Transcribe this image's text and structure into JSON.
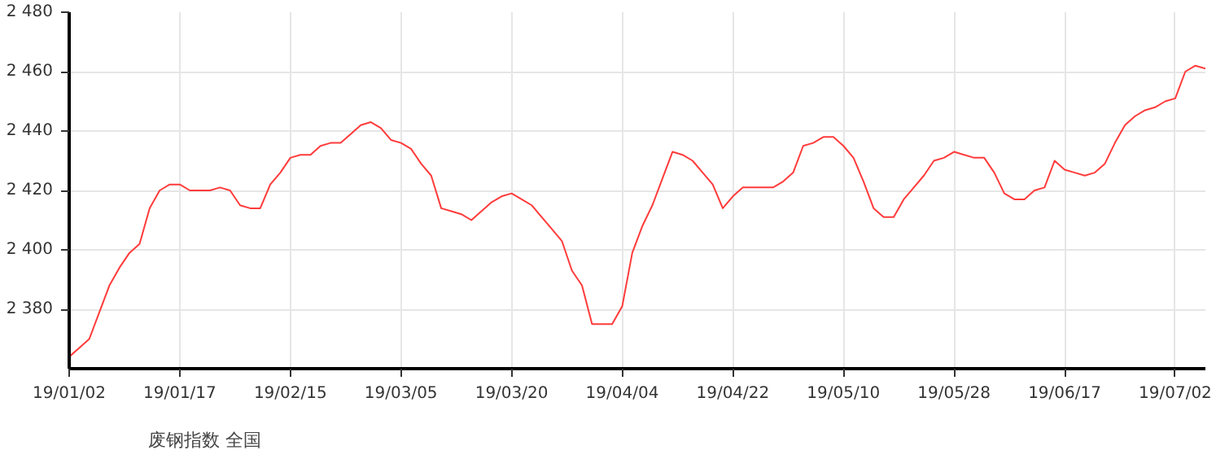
{
  "chart_data": {
    "type": "line",
    "categories": [
      "19/01/02",
      null,
      null,
      null,
      null,
      null,
      null,
      null,
      null,
      null,
      null,
      "19/01/17",
      null,
      null,
      null,
      null,
      null,
      null,
      null,
      null,
      null,
      null,
      "19/02/15",
      null,
      null,
      null,
      null,
      null,
      null,
      null,
      null,
      null,
      null,
      "19/03/05",
      null,
      null,
      null,
      null,
      null,
      null,
      null,
      null,
      null,
      null,
      "19/03/20",
      null,
      null,
      null,
      null,
      null,
      null,
      null,
      null,
      null,
      null,
      "19/04/04",
      null,
      null,
      null,
      null,
      null,
      null,
      null,
      null,
      null,
      null,
      "19/04/22",
      null,
      null,
      null,
      null,
      null,
      null,
      null,
      null,
      null,
      null,
      "19/05/10",
      null,
      null,
      null,
      null,
      null,
      null,
      null,
      null,
      null,
      null,
      "19/05/28",
      null,
      null,
      null,
      null,
      null,
      null,
      null,
      null,
      null,
      null,
      "19/06/17",
      null,
      null,
      null,
      null,
      null,
      null,
      null,
      null,
      null,
      null,
      "19/07/02",
      null,
      null,
      null
    ],
    "series": [
      {
        "name": "废钢指数 全国",
        "color": "#ff3b3b",
        "values": [
          2364,
          2367,
          2370,
          2379,
          2388,
          2394,
          2399,
          2402,
          2414,
          2420,
          2422,
          2422,
          2420,
          2420,
          2420,
          2421,
          2420,
          2415,
          2414,
          2414,
          2422,
          2426,
          2431,
          2432,
          2432,
          2435,
          2436,
          2436,
          2439,
          2442,
          2443,
          2441,
          2437,
          2436,
          2434,
          2429,
          2425,
          2414,
          2413,
          2412,
          2410,
          2413,
          2416,
          2418,
          2419,
          2417,
          2415,
          2411,
          2407,
          2403,
          2393,
          2388,
          2375,
          2375,
          2375,
          2381,
          2399,
          2408,
          2415,
          2424,
          2433,
          2432,
          2430,
          2426,
          2422,
          2414,
          2418,
          2421,
          2421,
          2421,
          2421,
          2423,
          2426,
          2435,
          2436,
          2438,
          2438,
          2435,
          2431,
          2423,
          2414,
          2411,
          2411,
          2417,
          2421,
          2425,
          2430,
          2431,
          2433,
          2432,
          2431,
          2431,
          2426,
          2419,
          2417,
          2417,
          2420,
          2421,
          2430,
          2427,
          2426,
          2425,
          2426,
          2429,
          2436,
          2442,
          2445,
          2447,
          2448,
          2450,
          2451,
          2460,
          2462,
          2461
        ]
      }
    ],
    "ylim": [
      2360,
      2480
    ],
    "yticks": [
      {
        "value": 2380,
        "label": "2 380"
      },
      {
        "value": 2400,
        "label": "2 400"
      },
      {
        "value": 2420,
        "label": "2 420"
      },
      {
        "value": 2440,
        "label": "2 440"
      },
      {
        "value": 2460,
        "label": "2 460"
      },
      {
        "value": 2480,
        "label": "2 480"
      }
    ],
    "grid": true,
    "legend": "bottom left",
    "marker": "none",
    "line_style": "solid"
  }
}
